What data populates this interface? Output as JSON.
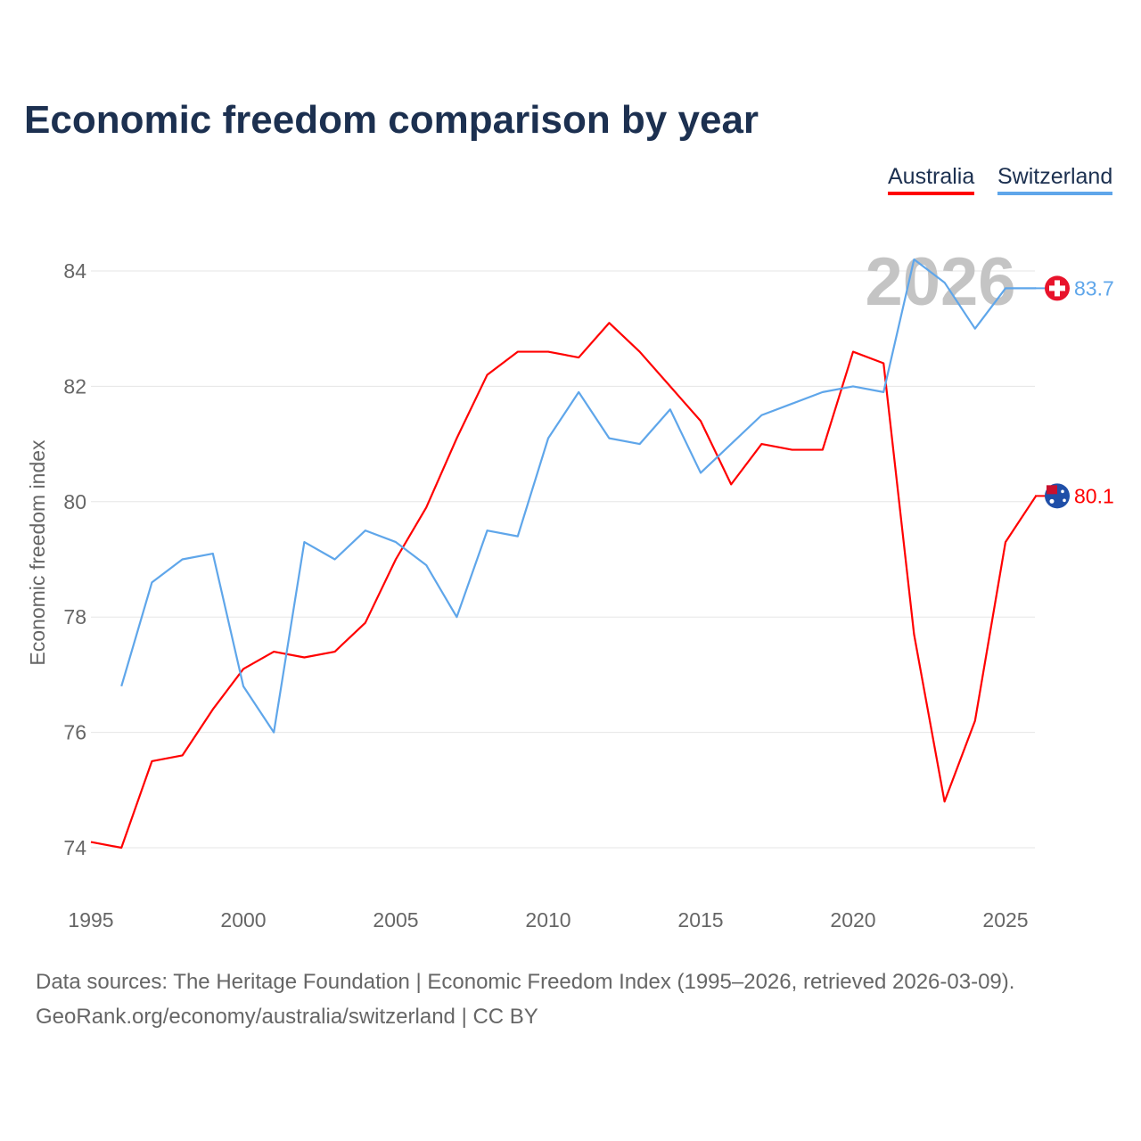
{
  "chart_data": {
    "type": "line",
    "title": "Economic freedom comparison by year",
    "xlabel": "",
    "ylabel": "Economic freedom index",
    "xlim": [
      1995,
      2026
    ],
    "ylim": [
      73.2,
      85
    ],
    "x_ticks": [
      "1995",
      "2000",
      "2005",
      "2010",
      "2015",
      "2020",
      "2025"
    ],
    "y_ticks": [
      "74",
      "76",
      "78",
      "80",
      "82",
      "84"
    ],
    "grid": true,
    "legend_position": "top-right",
    "watermark_year": "2026",
    "series": [
      {
        "name": "Australia",
        "color": "#ff0000",
        "end_label": "80.1",
        "start_year": 1995,
        "values": [
          74.1,
          74.0,
          75.5,
          75.6,
          76.4,
          77.1,
          77.4,
          77.3,
          77.4,
          77.9,
          79.0,
          79.9,
          81.1,
          82.2,
          82.6,
          82.6,
          82.5,
          83.1,
          82.6,
          82.0,
          81.4,
          80.3,
          81.0,
          80.9,
          80.9,
          82.6,
          82.4,
          77.7,
          74.8,
          76.2,
          79.3,
          80.1
        ]
      },
      {
        "name": "Switzerland",
        "color": "#5fa6ea",
        "end_label": "83.7",
        "start_year": 1996,
        "values": [
          76.8,
          78.6,
          79.0,
          79.1,
          76.8,
          76.0,
          79.3,
          79.0,
          79.5,
          79.3,
          78.9,
          78.0,
          79.5,
          79.4,
          81.1,
          81.9,
          81.1,
          81.0,
          81.6,
          80.5,
          81.0,
          81.5,
          81.7,
          81.9,
          82.0,
          81.9,
          84.2,
          83.8,
          83.0,
          83.7,
          83.7
        ]
      }
    ]
  },
  "footer": {
    "source_line": "Data sources: The Heritage Foundation | Economic Freedom Index (1995–2026, retrieved 2026-03-09).",
    "credit_line": "GeoRank.org/economy/australia/switzerland | CC BY"
  }
}
